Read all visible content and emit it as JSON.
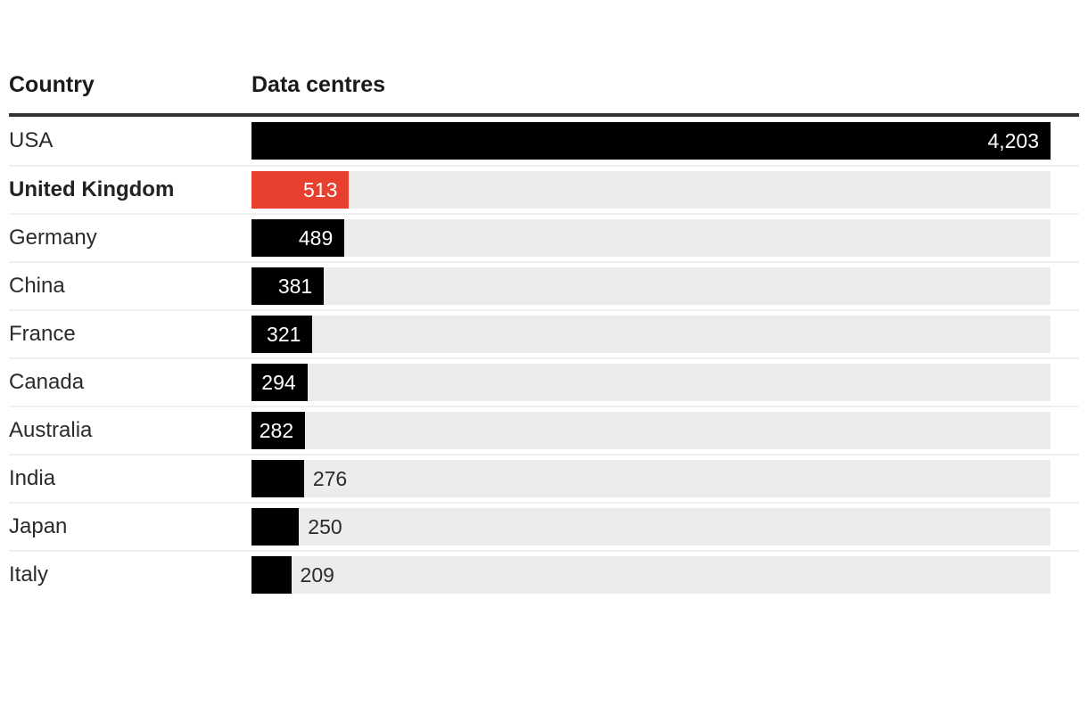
{
  "chart_data": {
    "type": "bar",
    "orientation": "horizontal",
    "col_headers": [
      "Country",
      "Data centres"
    ],
    "categories": [
      "USA",
      "United Kingdom",
      "Germany",
      "China",
      "France",
      "Canada",
      "Australia",
      "India",
      "Japan",
      "Italy"
    ],
    "values": [
      4203,
      513,
      489,
      381,
      321,
      294,
      282,
      276,
      250,
      209
    ],
    "value_labels": [
      "4,203",
      "513",
      "489",
      "381",
      "321",
      "294",
      "282",
      "276",
      "250",
      "209"
    ],
    "value_inside": [
      true,
      true,
      true,
      true,
      true,
      true,
      true,
      false,
      false,
      false
    ],
    "xlim": [
      0,
      4203
    ],
    "highlight_category": "United Kingdom",
    "bar_color": "#000000",
    "highlight_color": "#e8402e",
    "track_color": "#ececec",
    "grid": false,
    "legend": false
  }
}
